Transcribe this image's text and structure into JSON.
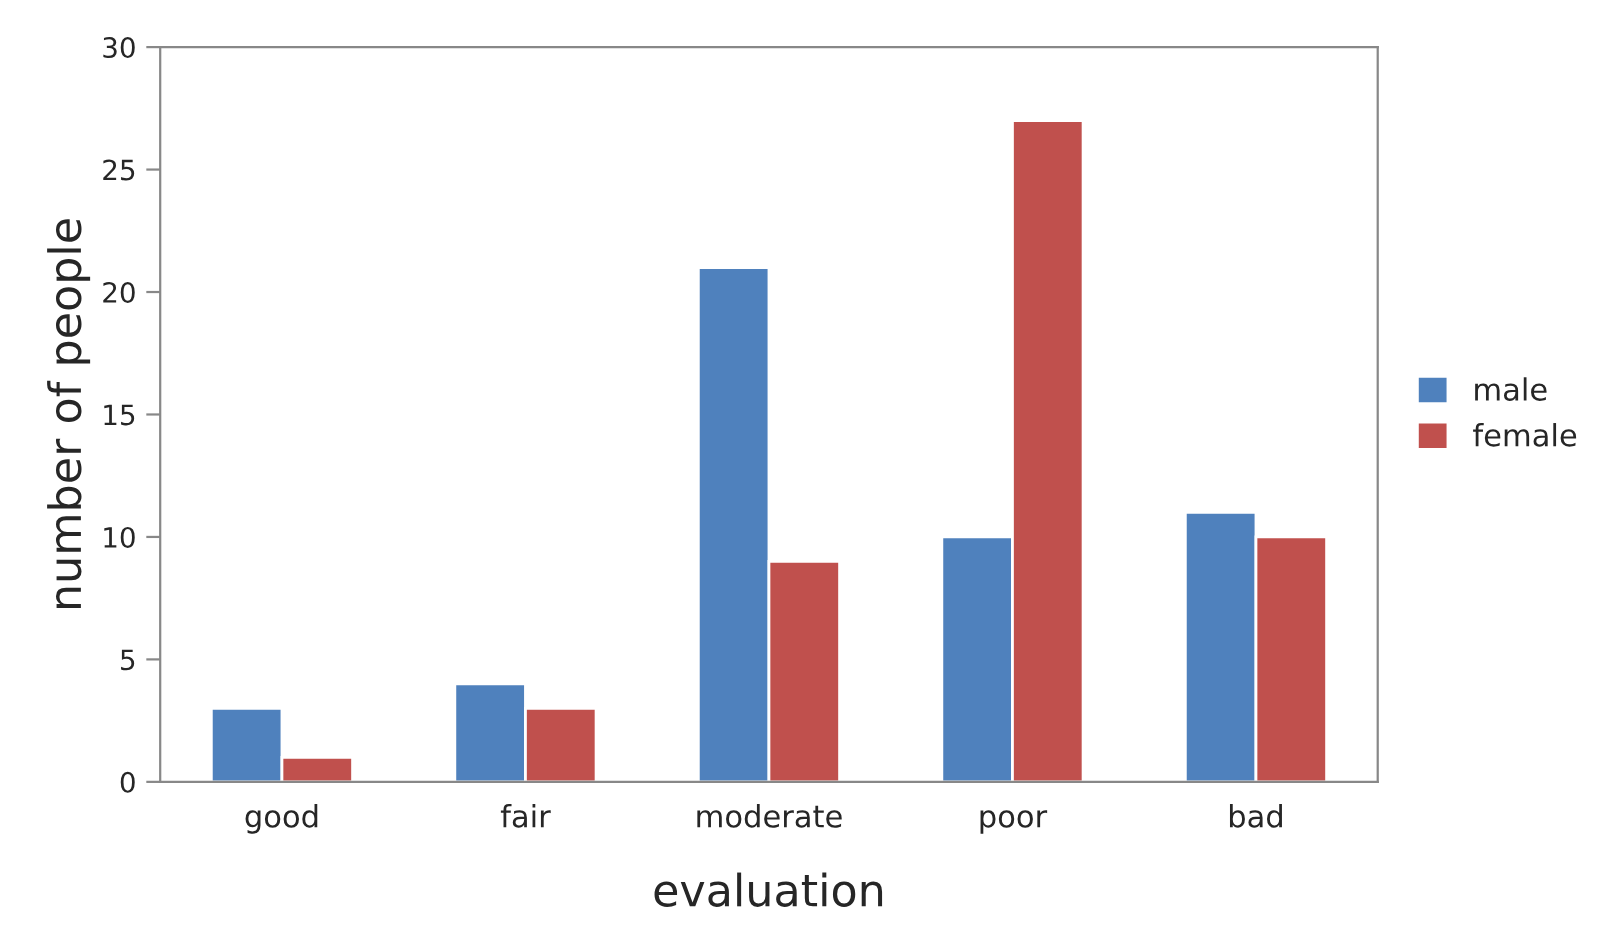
{
  "chart_data": {
    "type": "bar",
    "xlabel": "evaluation",
    "ylabel": "number of people",
    "categories": [
      "good",
      "fair",
      "moderate",
      "poor",
      "bad"
    ],
    "series": [
      {
        "name": "male",
        "color": "#4f81bd",
        "values": [
          3,
          4,
          21,
          10,
          11
        ]
      },
      {
        "name": "female",
        "color": "#c0504d",
        "values": [
          1,
          3,
          9,
          27,
          10
        ]
      }
    ],
    "ylim": [
      0,
      30
    ],
    "yticks": [
      0,
      5,
      10,
      15,
      20,
      25,
      30
    ],
    "grid": false,
    "legend": "right"
  }
}
